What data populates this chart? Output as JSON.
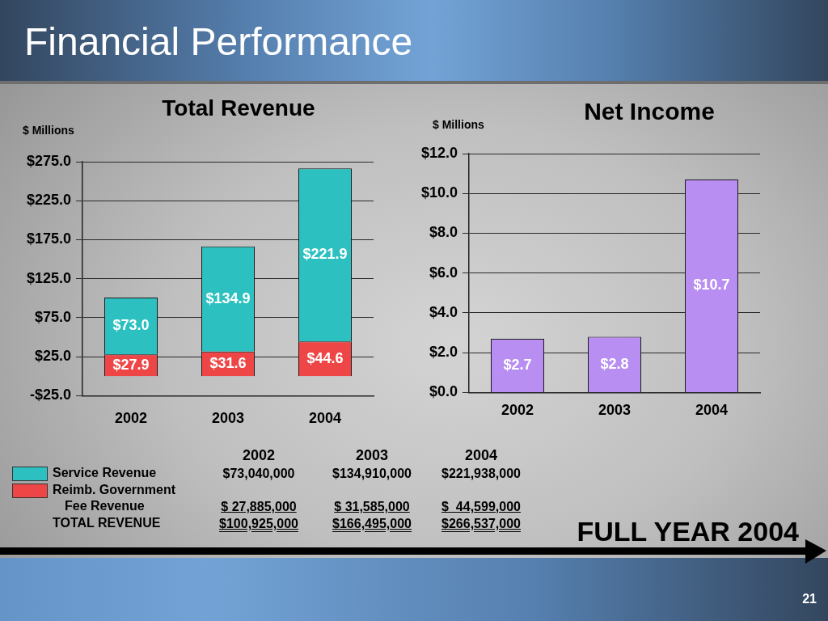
{
  "chart_data": [
    {
      "type": "other",
      "title": "Financial Performance",
      "annotations": [
        "FULL YEAR 2004",
        "21"
      ]
    },
    {
      "type": "bar",
      "title": "Total Revenue",
      "ylabel": "$ Millions",
      "categories": [
        "2002",
        "2003",
        "2004"
      ],
      "stacked": true,
      "series": [
        {
          "color": "#ee4646",
          "values": [
            27.9,
            31.6,
            44.6
          ],
          "value_labels": [
            "$27.9",
            "$31.6",
            "$44.6"
          ]
        },
        {
          "color": "#2cc0c0",
          "values": [
            73.0,
            134.9,
            221.9
          ],
          "value_labels": [
            "$73.0",
            "$134.9",
            "$221.9"
          ]
        }
      ],
      "ylim": [
        -25,
        275
      ],
      "yticks": [
        {
          "value": -25,
          "label": "-$25.0"
        },
        {
          "value": 25,
          "label": "$25.0"
        },
        {
          "value": 75,
          "label": "$75.0"
        },
        {
          "value": 125,
          "label": "$125.0"
        },
        {
          "value": 175,
          "label": "$175.0"
        },
        {
          "value": 225,
          "label": "$225.0"
        },
        {
          "value": 275,
          "label": "$275.0"
        }
      ],
      "grid": "y"
    },
    {
      "type": "bar",
      "title": "Net Income",
      "ylabel": "$ Millions",
      "categories": [
        "2002",
        "2003",
        "2004"
      ],
      "values": [
        2.7,
        2.8,
        10.7
      ],
      "color": "#b88ef2",
      "value_labels": [
        "$2.7",
        "$2.8",
        "$10.7"
      ],
      "ylim": [
        0,
        12
      ],
      "yticks": [
        {
          "value": 0,
          "label": "$0.0"
        },
        {
          "value": 2,
          "label": "$2.0"
        },
        {
          "value": 4,
          "label": "$4.0"
        },
        {
          "value": 6,
          "label": "$6.0"
        },
        {
          "value": 8,
          "label": "$8.0"
        },
        {
          "value": 10,
          "label": "$10.0"
        },
        {
          "value": 12,
          "label": "$12.0"
        }
      ],
      "grid": "y"
    },
    {
      "type": "other",
      "categories": [
        "2002",
        "2003",
        "2004"
      ],
      "series": [
        {
          "name": "Service Revenue",
          "color": "#2cc0c0",
          "values": [
            73040000,
            134910000,
            221938000
          ],
          "value_labels": [
            "$73,040,000",
            "$134,910,000",
            "$221,938,000"
          ]
        },
        {
          "name": "Reimb. Government Fee Revenue",
          "color": "#ee4646",
          "values": [
            27885000,
            31585000,
            44599000
          ],
          "value_labels": [
            "$ 27,885,000",
            "$ 31,585,000",
            "$  44,599,000"
          ]
        },
        {
          "name": "TOTAL REVENUE",
          "values": [
            100925000,
            166495000,
            266537000
          ],
          "value_labels": [
            "$100,925,000",
            "$166,495,000",
            "$266,537,000"
          ]
        }
      ]
    }
  ]
}
